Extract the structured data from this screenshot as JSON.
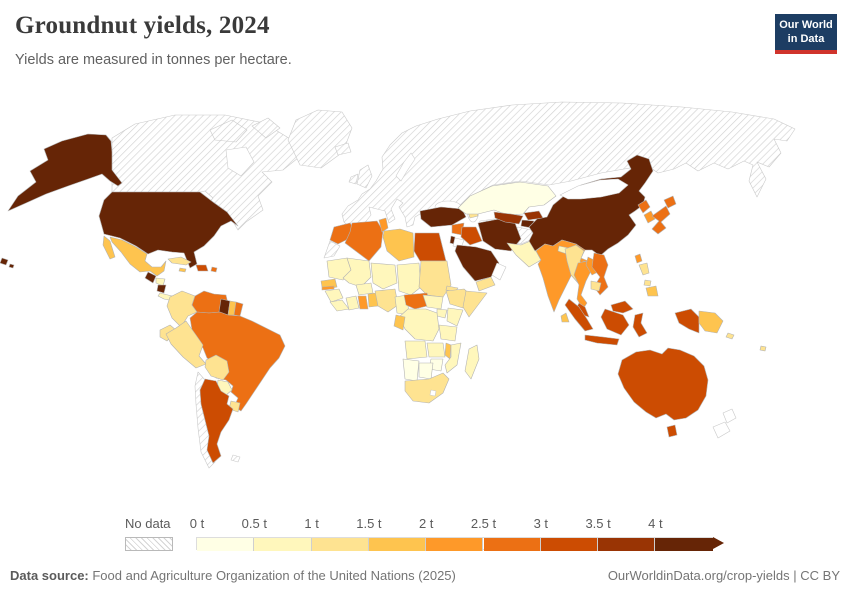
{
  "header": {
    "title": "Groundnut yields, 2024",
    "subtitle": "Yields are measured in tonnes per hectare.",
    "logo_line1": "Our World",
    "logo_line2": "in Data"
  },
  "legend": {
    "no_data_label": "No data",
    "ticks": [
      "0 t",
      "0.5 t",
      "1 t",
      "1.5 t",
      "2 t",
      "2.5 t",
      "3 t",
      "3.5 t",
      "4 t"
    ],
    "palette": [
      "#ffffe5",
      "#fff7bc",
      "#fee391",
      "#fec44f",
      "#fe9929",
      "#ec7014",
      "#cc4c02",
      "#993404",
      "#662506"
    ]
  },
  "footer": {
    "source_label": "Data source:",
    "source_text": " Food and Agriculture Organization of the United Nations (2025)",
    "url": "OurWorldinData.org/crop-yields",
    "license": " | CC BY"
  },
  "chart_data": {
    "type": "choropleth_map",
    "title": "Groundnut yields, 2024",
    "subtitle": "Yields are measured in tonnes per hectare.",
    "unit": "tonnes per hectare",
    "year": 2024,
    "source": "Food and Agriculture Organization of the United Nations (2025)",
    "legend_position": "bottom",
    "bin_edges": [
      0,
      0.5,
      1,
      1.5,
      2,
      2.5,
      3,
      3.5,
      4
    ],
    "bin_ranges": [
      "0–0.5 t",
      "0.5–1 t",
      "1–1.5 t",
      "1.5–2 t",
      "2–2.5 t",
      "2.5–3 t",
      "3–3.5 t",
      "3.5–4 t",
      "4+ t"
    ],
    "no_data_style": "hatched",
    "countries": {
      "canada": "hatch",
      "greenland": "hatch",
      "europe-russia": "hatch",
      "iceland": "hatch",
      "united-kingdom": "hatch",
      "ireland": "hatch",
      "chile": "hatch",
      "falkland-islands": "hatch",
      "western-sahara": "hatch",
      "afghanistan": "hatch",
      "turkmenistan": "hatch",
      "mongolia": "white",
      "new-zealand": "white",
      "oman": "white",
      "jordan": "white",
      "lesotho": "white",
      "kazakhstan": 0,
      "namibia": 0,
      "botswana": 0,
      "zimbabwe": 0,
      "honduras": 1,
      "costa-rica-panama": 1,
      "paraguay": 1,
      "mauritania": 1,
      "mali": 1,
      "niger": 1,
      "chad": 1,
      "guinea": 1,
      "sierra-leone-liberia": 1,
      "cote-divoire": 1,
      "burkina-faso": 1,
      "cameroon": 1,
      "south-sudan": 1,
      "uganda": 1,
      "kenya": 1,
      "dr-congo": 1,
      "tanzania": 1,
      "angola": 1,
      "zambia": 1,
      "mozambique": 1,
      "madagascar": 1,
      "pakistan": 1,
      "nepal": 1,
      "cuba": 2,
      "colombia": 2,
      "ecuador": 2,
      "peru": 2,
      "bolivia": 2,
      "uruguay": 2,
      "sudan": 2,
      "eritrea": 2,
      "ethiopia": 2,
      "somalia": 2,
      "nigeria": 2,
      "south-africa": 2,
      "yemen": 2,
      "azerbaijan": 2,
      "myanmar": 2,
      "cambodia": 2,
      "philippines": 2,
      "fiji": 2,
      "solomon-islands": 2,
      "mexico": 3,
      "jamaica": 3,
      "suriname": 3,
      "senegal": 3,
      "togo-benin": 3,
      "gabon-congo": 3,
      "malawi": 3,
      "libya": 3,
      "sri-lanka": 3,
      "papua-new-guinea": 3,
      "philippines-south": 3,
      "tunisia": 4,
      "ghana": 4,
      "gambia": 4,
      "india": 4,
      "bangladesh": 4,
      "thailand": 4,
      "laos": 4,
      "south-korea": 4,
      "taiwan": 4,
      "venezuela": 5,
      "french-guiana": 5,
      "brazil": 5,
      "morocco": 5,
      "algeria": 5,
      "central-african-republic": 5,
      "syria": 5,
      "vietnam": 5,
      "japan": 5,
      "north-korea": 5,
      "puerto-rico": 5,
      "hispaniola": 6,
      "argentina": 6,
      "egypt": 6,
      "iraq": 6,
      "malaysia": 6,
      "indonesia": 6,
      "australia": 6,
      "uzbekistan": 7,
      "kyrgyzstan": 7,
      "united-states": 8,
      "hawaii": 8,
      "guatemala": 8,
      "nicaragua": 8,
      "guyana": 8,
      "turkey": 8,
      "saudi-arabia": 8,
      "iran": 8,
      "israel": 8,
      "china": 8,
      "tajikistan": 8
    }
  }
}
